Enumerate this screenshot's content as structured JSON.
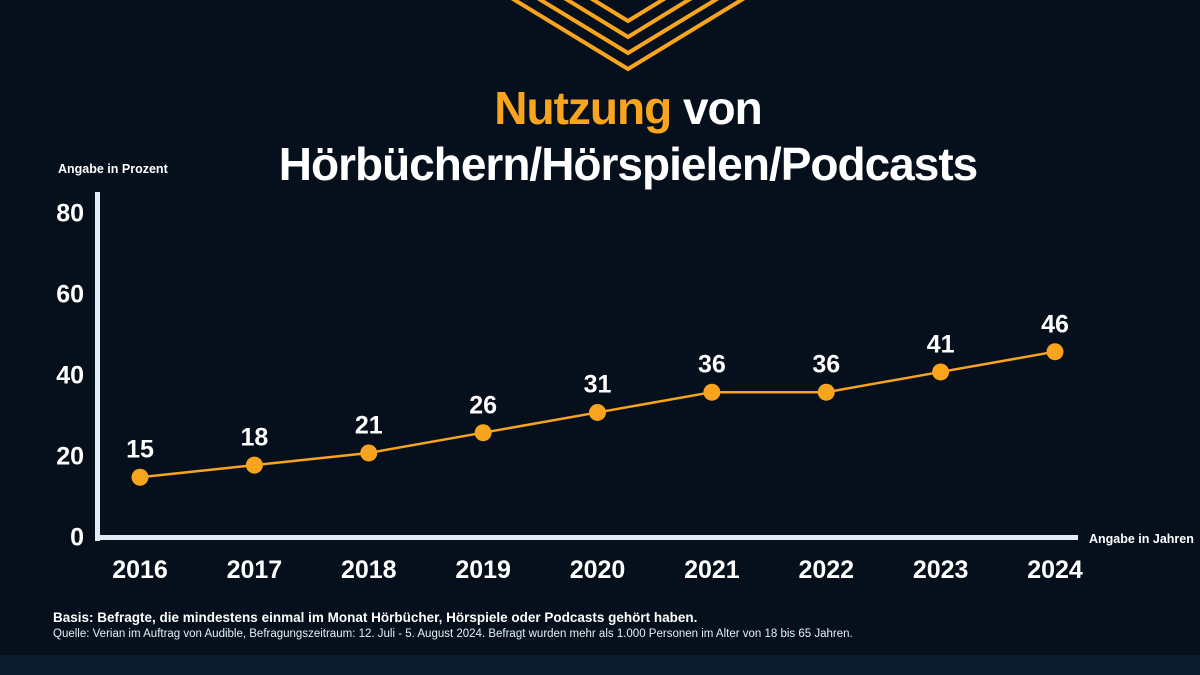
{
  "header": {
    "title_line1_accent": "Nutzung",
    "title_line1_rest": " von",
    "title_line2": "Hörbüchern/Hörspielen/Podcasts"
  },
  "chart_data": {
    "type": "line",
    "x": [
      2016,
      2017,
      2018,
      2019,
      2020,
      2021,
      2022,
      2023,
      2024
    ],
    "values": [
      15,
      18,
      21,
      26,
      31,
      36,
      36,
      41,
      46
    ],
    "series_name": "Nutzung von Hörbüchern/Hörspielen/Podcasts",
    "title": "Nutzung von Hörbüchern/Hörspielen/Podcasts",
    "ylabel": "Angabe in Prozent",
    "xlabel": "Angabe in Jahren",
    "yticks": [
      0,
      20,
      40,
      60,
      80
    ],
    "ylim": [
      0,
      80
    ],
    "grid": false,
    "legend_position": "none",
    "point_labels_shown": true,
    "line_color": "#F8A41D",
    "marker_color": "#F8A41D",
    "axis_color": "#E2EAF4",
    "tick_label_color": "#FFFFFF"
  },
  "footer": {
    "basis": "Basis: Befragte, die mindestens einmal im Monat Hörbücher, Hörspiele oder Podcasts gehört haben.",
    "quelle": "Quelle: Verian im Auftrag von Audible, Befragungszeitraum: 12. Juli - 5. August 2024. Befragt wurden mehr als 1.000 Personen im Alter von 18 bis 65 Jahren."
  },
  "colors": {
    "background": "#06101C",
    "accent": "#F8A41D",
    "axis": "#E2EAF4",
    "bottom_bar": "#0C1B2E"
  }
}
